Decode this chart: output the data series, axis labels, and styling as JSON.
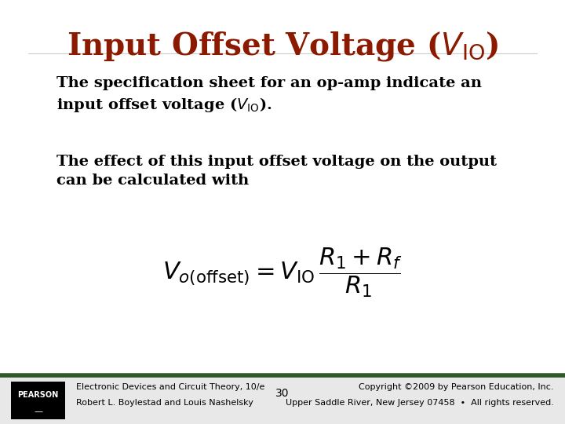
{
  "title": "Input Offset Voltage ($V_{\\mathrm{IO}}$)",
  "title_color": "#8B1A00",
  "title_fontsize": 28,
  "body_text_1": "The specification sheet for an op-amp indicate an\ninput offset voltage ($V_{\\mathrm{IO}}$).",
  "body_text_2": "The effect of this input offset voltage on the output\ncan be calculated with",
  "formula": "$V_{o(\\mathrm{offset})} = V_{\\mathrm{IO}}\\,\\dfrac{R_1 + R_f}{R_1}$",
  "footer_left_line1": "Electronic Devices and Circuit Theory, 10/e",
  "footer_left_line2": "Robert L. Boylestad and Louis Nashelsky",
  "footer_center": "30",
  "footer_right_line1": "Copyright ©2009 by Pearson Education, Inc.",
  "footer_right_line2": "Upper Saddle River, New Jersey 07458  •  All rights reserved.",
  "bg_color": "#ffffff",
  "footer_bar_color": "#2d5a27",
  "footer_bg_color": "#e8e8e8",
  "pearson_box_color": "#000000",
  "pearson_text_color": "#ffffff",
  "body_fontsize": 14,
  "formula_fontsize": 22,
  "footer_fontsize": 8
}
